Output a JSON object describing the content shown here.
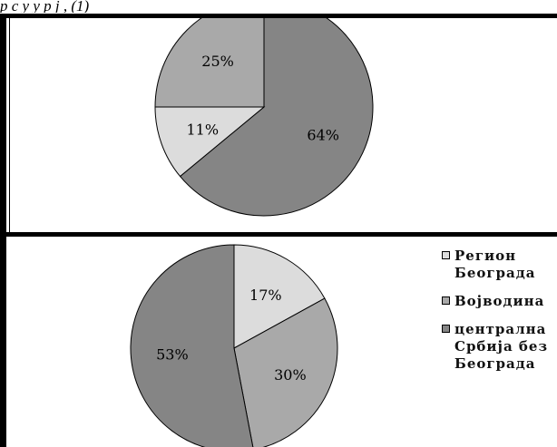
{
  "caption": "р  с      у  у  р  ј ,                (1)",
  "colors": {
    "region1": "#dcdcdc",
    "region2": "#a9a9a9",
    "region3": "#858585"
  },
  "chart_data": [
    {
      "type": "pie",
      "categories": [
        "Регион Београда",
        "Војводина",
        "централна Србија без Београда"
      ],
      "values": [
        11,
        25,
        64
      ],
      "labels": [
        "11%",
        "25%",
        "64%"
      ]
    },
    {
      "type": "pie",
      "categories": [
        "Регион Београда",
        "Војводина",
        "централна Србија без Београда"
      ],
      "values": [
        17,
        30,
        53
      ],
      "labels": [
        "17%",
        "30%",
        "53%"
      ],
      "legend_position": "right"
    }
  ],
  "legend": [
    {
      "label": "Регион\nБеограда"
    },
    {
      "label": "Војводина"
    },
    {
      "label": "централна\nСрбија без\nБеограда"
    }
  ]
}
